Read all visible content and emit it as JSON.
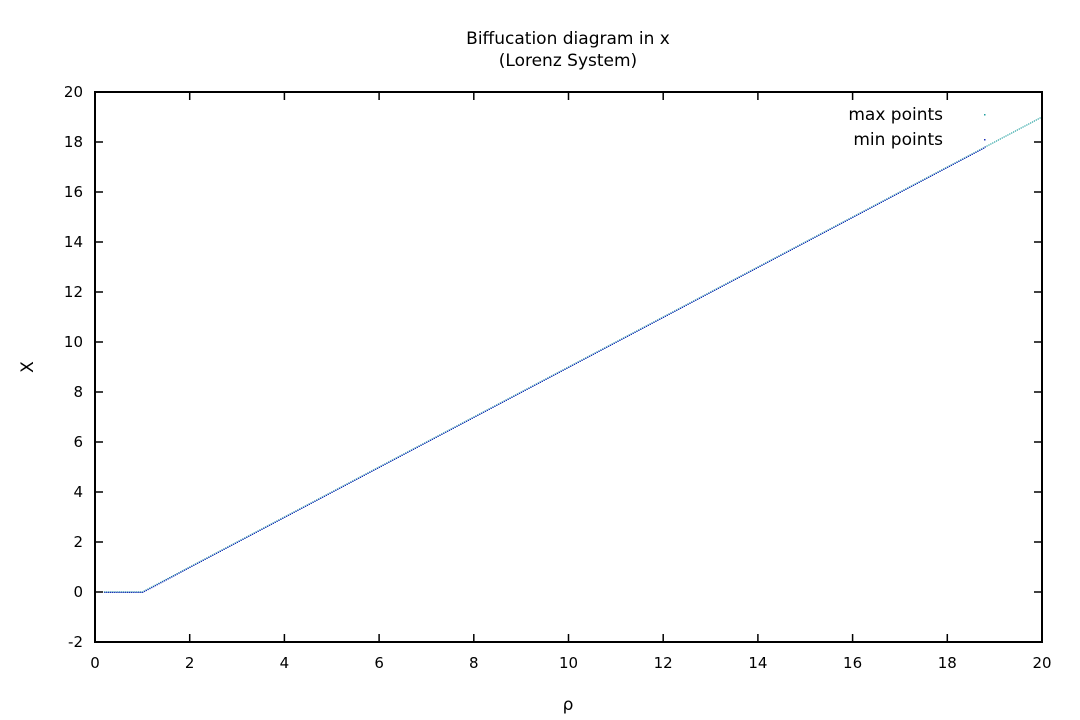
{
  "chart_data": {
    "type": "scatter",
    "title": "Biffucation diagram in x",
    "subtitle": "(Lorenz System)",
    "xlabel": "ρ",
    "ylabel": "X",
    "xlim": [
      0,
      20
    ],
    "ylim": [
      -2,
      20
    ],
    "xticks": [
      0,
      2,
      4,
      6,
      8,
      10,
      12,
      14,
      16,
      18,
      20
    ],
    "yticks": [
      -2,
      0,
      2,
      4,
      6,
      8,
      10,
      12,
      14,
      16,
      18,
      20
    ],
    "grid": false,
    "legend_position": "top-right",
    "series": [
      {
        "name": "max points",
        "color": "#1f9e9e",
        "description_rule": "x = 0 for rho <= 1; x = rho - 1 for rho > 1",
        "x": [
          0.2,
          0.6,
          1.0,
          1.5,
          2.0,
          3.0,
          4.0,
          5.0,
          6.0,
          7.0,
          8.0,
          9.0,
          10.0,
          11.0,
          12.0,
          13.0,
          14.0,
          15.0,
          16.0,
          17.0,
          18.0,
          18.8,
          19.8,
          20.0
        ],
        "y": [
          0,
          0,
          0,
          0.5,
          1.0,
          2.0,
          3.0,
          4.0,
          5.0,
          6.0,
          7.0,
          8.0,
          9.0,
          10.0,
          11.0,
          12.0,
          13.0,
          14.0,
          15.0,
          16.0,
          17.0,
          17.8,
          18.8,
          19.0
        ]
      },
      {
        "name": "min points",
        "color": "#1a2db8",
        "x": [
          0.2,
          0.6,
          1.0,
          1.5,
          2.0,
          3.0,
          4.0,
          5.0,
          6.0,
          7.0,
          8.0,
          9.0,
          10.0,
          11.0,
          12.0,
          13.0,
          14.0,
          15.0,
          16.0,
          17.0,
          18.0,
          18.8
        ],
        "y": [
          0,
          0,
          0,
          0.5,
          1.0,
          2.0,
          3.0,
          4.0,
          5.0,
          6.0,
          7.0,
          8.0,
          9.0,
          10.0,
          11.0,
          12.0,
          13.0,
          14.0,
          15.0,
          16.0,
          17.0,
          17.8
        ]
      }
    ]
  }
}
